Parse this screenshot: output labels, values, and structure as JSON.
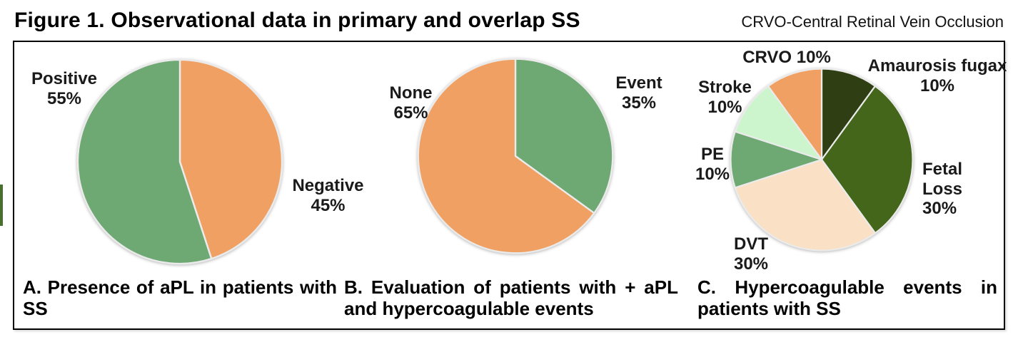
{
  "header": {
    "title": "Figure 1. Observational data in primary and overlap SS",
    "abbreviation_note": "CRVO-Central Retinal Vein Occlusion"
  },
  "decor": {
    "left_edge_fragment_color": "#47702F",
    "slice_separator_color": "#EBEBEB"
  },
  "chart_data": [
    {
      "type": "pie",
      "panel": "A",
      "caption": "A. Presence of aPL in patients with SS",
      "start_angle": "12 o'clock",
      "direction": "clockwise",
      "slices": [
        {
          "name": "negative",
          "label": "Negative",
          "pct": "45%",
          "value": 45,
          "color": "#EFA062"
        },
        {
          "name": "positive",
          "label": "Positive",
          "pct": "55%",
          "value": 55,
          "color": "#6EA873"
        }
      ]
    },
    {
      "type": "pie",
      "panel": "B",
      "caption": "B. Evaluation of patients with + aPL and hypercoagulable events",
      "start_angle": "12 o'clock",
      "direction": "clockwise",
      "slices": [
        {
          "name": "event",
          "label": "Event",
          "pct": "35%",
          "value": 35,
          "color": "#6EA873"
        },
        {
          "name": "none",
          "label": "None",
          "pct": "65%",
          "value": 65,
          "color": "#EFA062"
        }
      ]
    },
    {
      "type": "pie",
      "panel": "C",
      "caption": "C. Hypercoagulable events in patients with SS",
      "start_angle": "12 o'clock",
      "direction": "clockwise",
      "slices": [
        {
          "name": "amaurosis-fugax",
          "label": "Amaurosis fugax",
          "pct": "10%",
          "value": 10,
          "color": "#303E14"
        },
        {
          "name": "fetal-loss",
          "label": "Fetal Loss",
          "pct": "30%",
          "value": 30,
          "color": "#44661A"
        },
        {
          "name": "dvt",
          "label": "DVT",
          "pct": "30%",
          "value": 30,
          "color": "#FAE0C4"
        },
        {
          "name": "pe",
          "label": "PE",
          "pct": "10%",
          "value": 10,
          "color": "#6EA873"
        },
        {
          "name": "stroke",
          "label": "Stroke",
          "pct": "10%",
          "value": 10,
          "color": "#CDF5CD"
        },
        {
          "name": "crvo",
          "label": "CRVO",
          "pct": "10%",
          "value": 10,
          "color": "#EFA062"
        }
      ]
    }
  ]
}
